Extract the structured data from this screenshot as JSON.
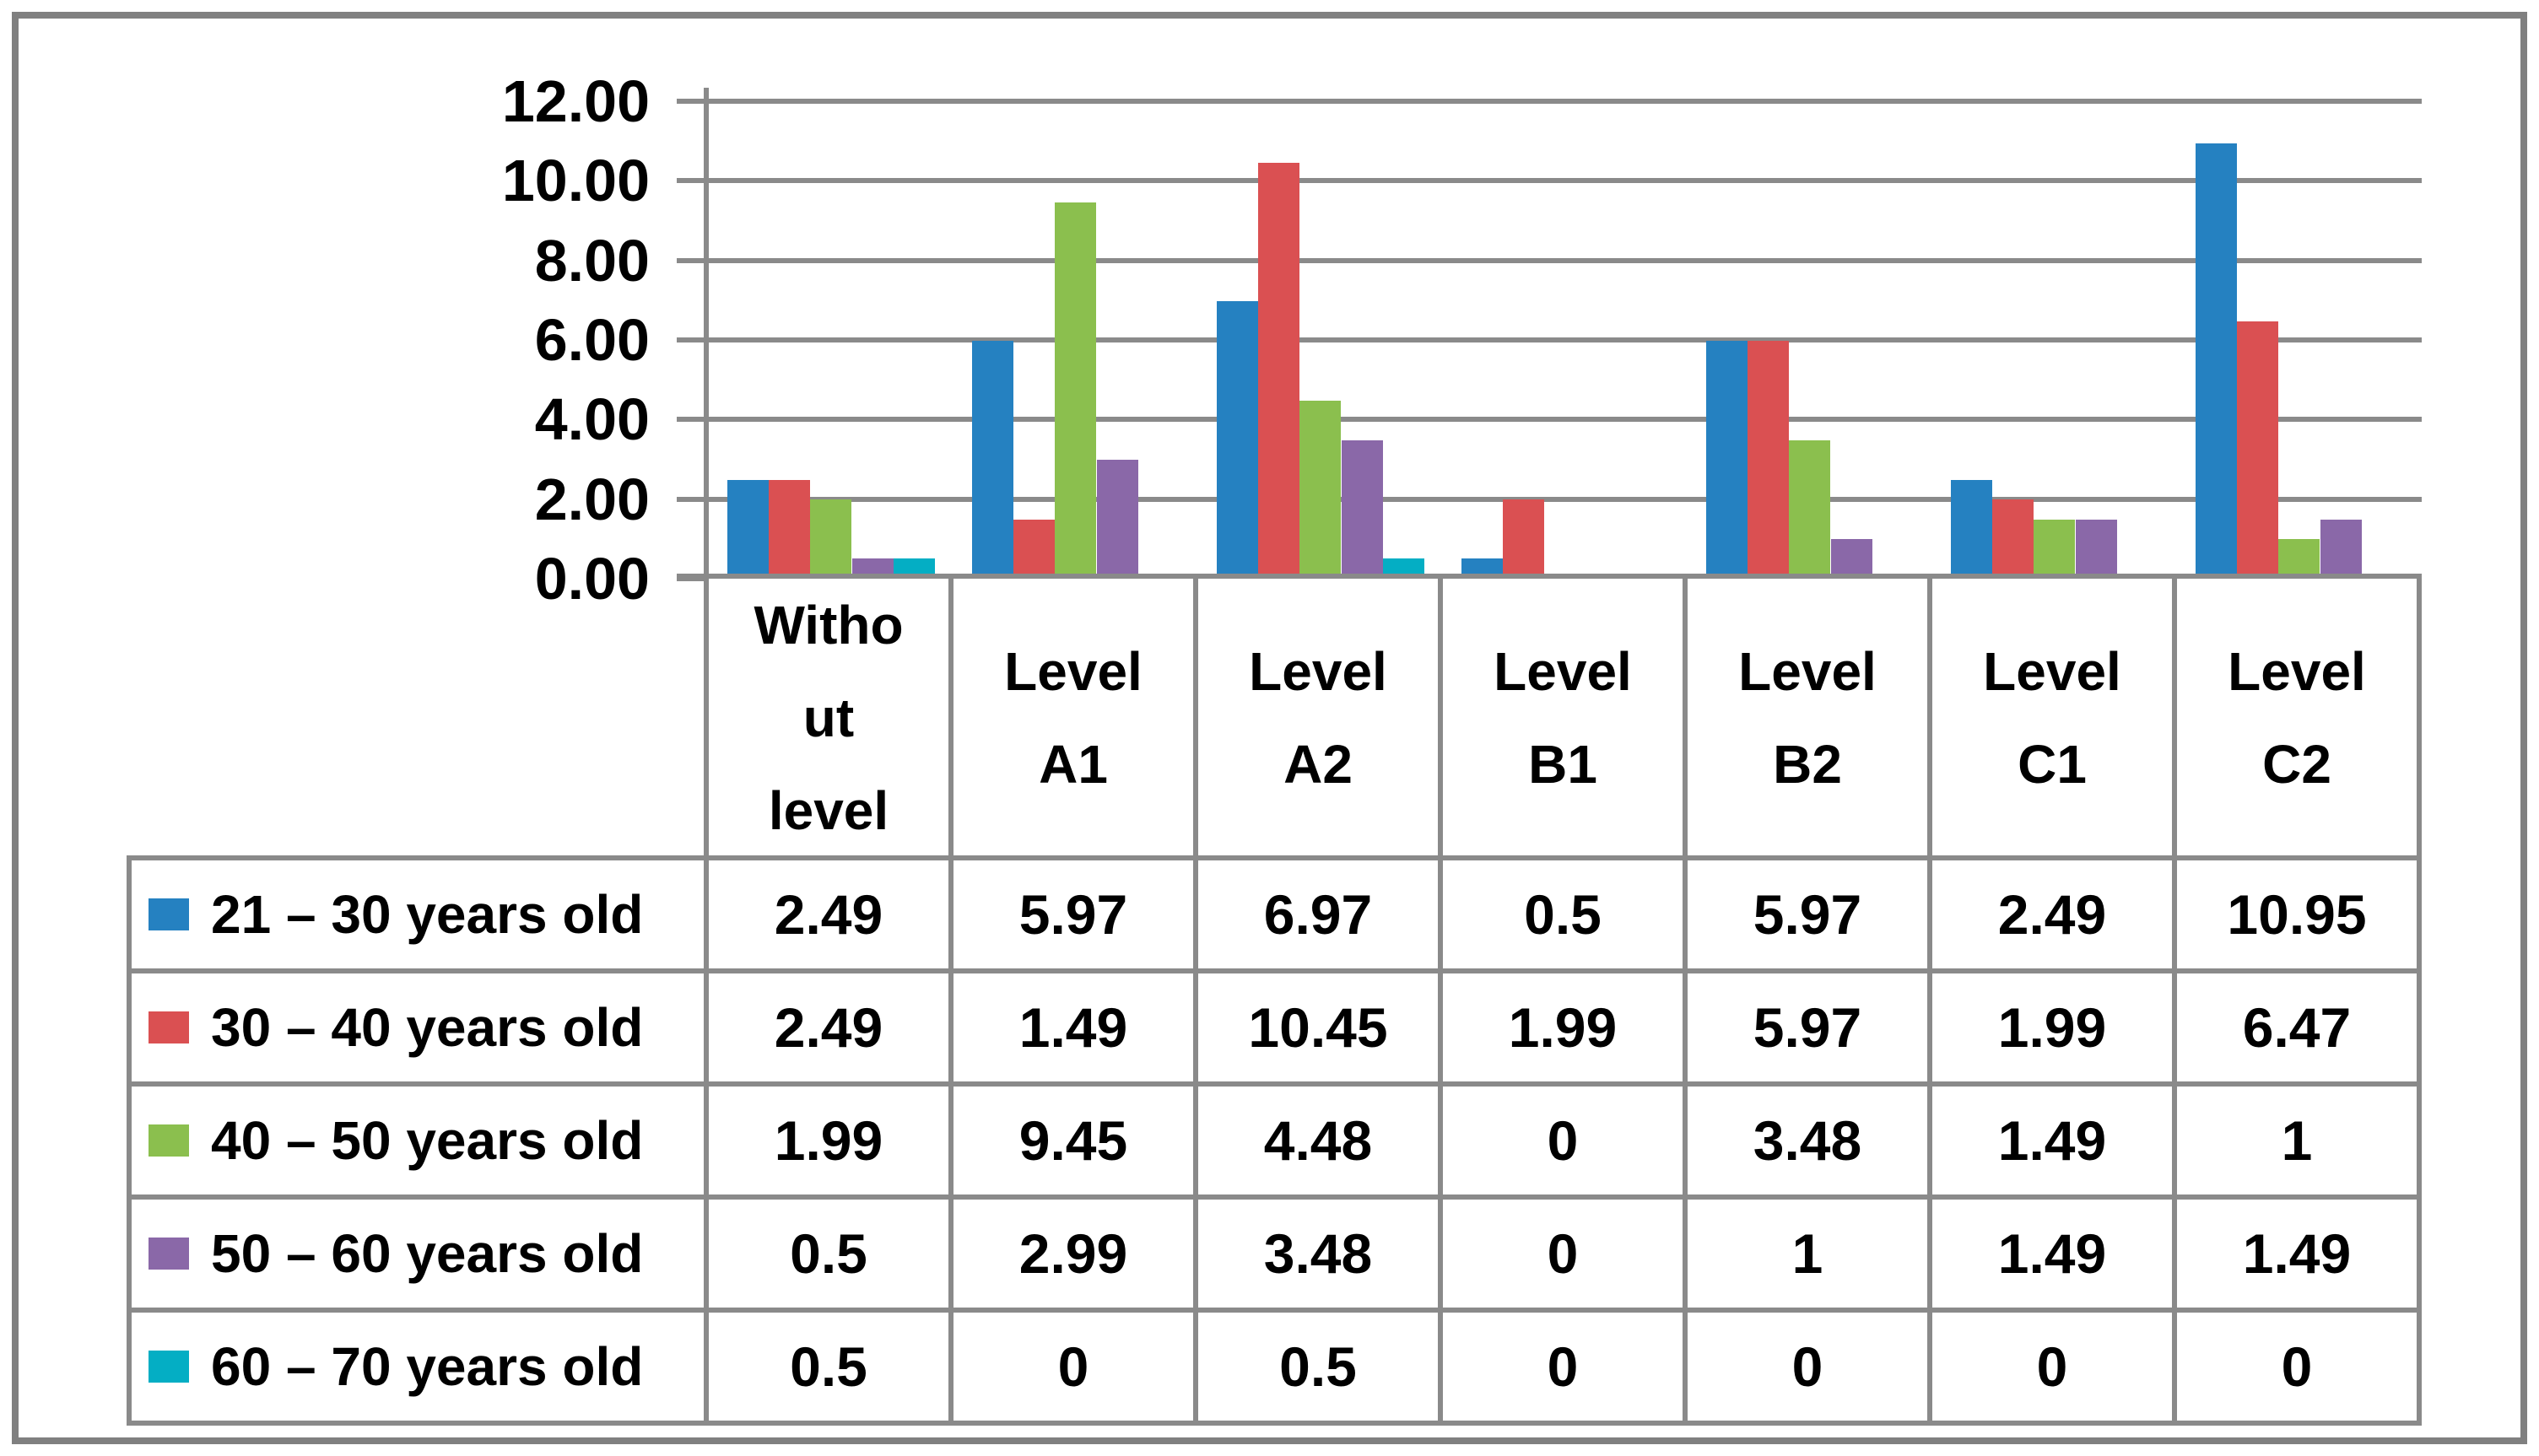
{
  "chart_data": {
    "type": "bar",
    "title": "",
    "categories": [
      "Without level",
      "Level A1",
      "Level A2",
      "Level B1",
      "Level B2",
      "Level C1",
      "Level C2"
    ],
    "category_display": [
      "Witho\nut\nlevel",
      "Level\nA1",
      "Level\nA2",
      "Level\nB1",
      "Level\nB2",
      "Level\nC1",
      "Level\nC2"
    ],
    "series": [
      {
        "name": "21 – 30 years old",
        "color": "#2581C1",
        "values": [
          2.49,
          5.97,
          6.97,
          0.5,
          5.97,
          2.49,
          10.95
        ],
        "display": [
          "2.49",
          "5.97",
          "6.97",
          "0.5",
          "5.97",
          "2.49",
          "10.95"
        ]
      },
      {
        "name": "30 – 40 years old",
        "color": "#DA5052",
        "values": [
          2.49,
          1.49,
          10.45,
          1.99,
          5.97,
          1.99,
          6.47
        ],
        "display": [
          "2.49",
          "1.49",
          "10.45",
          "1.99",
          "5.97",
          "1.99",
          "6.47"
        ]
      },
      {
        "name": "40 – 50 years old",
        "color": "#8BBF4E",
        "values": [
          1.99,
          9.45,
          4.48,
          0,
          3.48,
          1.49,
          1
        ],
        "display": [
          "1.99",
          "9.45",
          "4.48",
          "0",
          "3.48",
          "1.49",
          "1"
        ]
      },
      {
        "name": "50 – 60 years old",
        "color": "#8A68A8",
        "values": [
          0.5,
          2.99,
          3.48,
          0,
          1,
          1.49,
          1.49
        ],
        "display": [
          "0.5",
          "2.99",
          "3.48",
          "0",
          "1",
          "1.49",
          "1.49"
        ]
      },
      {
        "name": "60 – 70 years old",
        "color": "#04AEC4",
        "values": [
          0.5,
          0,
          0.5,
          0,
          0,
          0,
          0
        ],
        "display": [
          "0.5",
          "0",
          "0.5",
          "0",
          "0",
          "0",
          "0"
        ]
      }
    ],
    "ylim": [
      0,
      12
    ],
    "ytick_step": 2,
    "ytick_labels": [
      "12.00",
      "10.00",
      "8.00",
      "6.00",
      "4.00",
      "2.00",
      "0.00"
    ],
    "grid": true,
    "legend_position": "data-table-left-column",
    "colors": {
      "gridline": "#8A8A8A",
      "axis": "#8A8A8A",
      "table_border": "#8A8A8A",
      "outer_border": "#808080",
      "background": "#FFFFFF",
      "text": "#000000"
    }
  }
}
